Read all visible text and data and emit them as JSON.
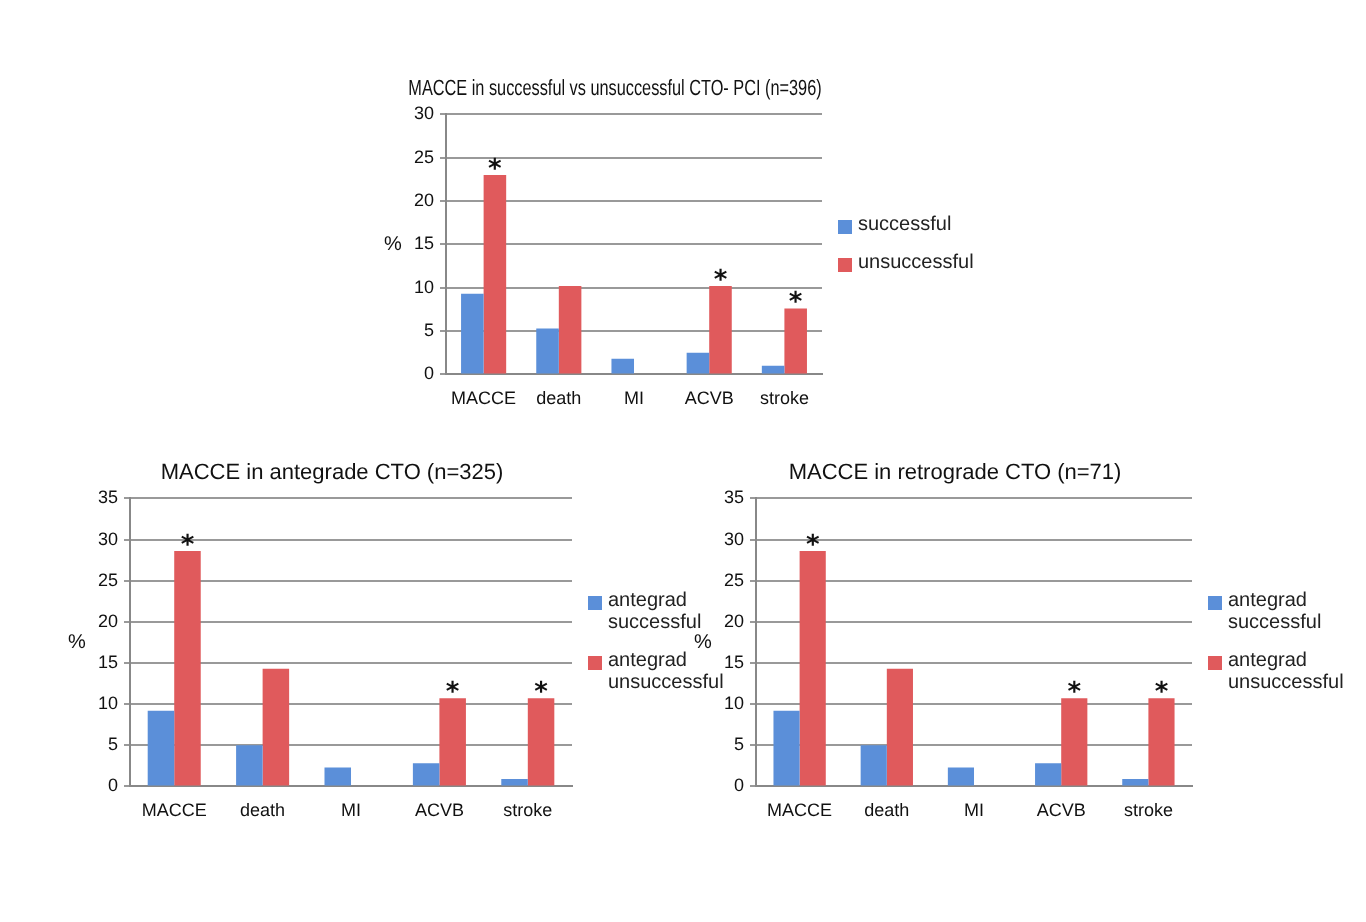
{
  "chart_data": [
    {
      "type": "bar",
      "title": "MACCE in successful vs unsuccessful CTO- PCI (n=396)",
      "ylabel": "%",
      "categories": [
        "MACCE",
        "death",
        "MI",
        "ACVB",
        "stroke"
      ],
      "series": [
        {
          "name": "successful",
          "color": "#5b8fd9",
          "values": [
            9.3,
            5.3,
            1.8,
            2.5,
            1.0
          ]
        },
        {
          "name": "unsuccessful",
          "color": "#e05a5c",
          "values": [
            23,
            10.2,
            0,
            10.2,
            7.6
          ]
        }
      ],
      "ylim": [
        0,
        30
      ],
      "yticks": [
        0,
        5,
        10,
        15,
        20,
        25,
        30
      ],
      "grid": "y",
      "legend": "right",
      "annotations": [
        {
          "text": "*",
          "x": "MACCE",
          "y": 23
        },
        {
          "text": "*",
          "x": "ACVB",
          "y": 10.2
        },
        {
          "text": "*",
          "x": "stroke",
          "y": 7.6
        }
      ]
    },
    {
      "type": "bar",
      "title": "MACCE in antegrade CTO (n=325)",
      "ylabel": "%",
      "categories": [
        "MACCE",
        "death",
        "MI",
        "ACVB",
        "stroke"
      ],
      "series": [
        {
          "name": "antegrad successful",
          "color": "#5b8fd9",
          "values": [
            9.2,
            5,
            2.3,
            2.8,
            0.9
          ]
        },
        {
          "name": "antegrad unsuccessful",
          "color": "#e05a5c",
          "values": [
            28.6,
            14.3,
            0,
            10.7,
            10.7
          ]
        }
      ],
      "ylim": [
        0,
        35
      ],
      "yticks": [
        0,
        5,
        10,
        15,
        20,
        25,
        30,
        35
      ],
      "grid": "y",
      "legend": "right",
      "annotations": [
        {
          "text": "*",
          "x": "MACCE",
          "y": 28.6
        },
        {
          "text": "*",
          "x": "ACVB",
          "y": 10.7
        },
        {
          "text": "*",
          "x": "stroke",
          "y": 10.7
        }
      ]
    },
    {
      "type": "bar",
      "title": "MACCE in retrograde CTO (n=71)",
      "ylabel": "%",
      "categories": [
        "MACCE",
        "death",
        "MI",
        "ACVB",
        "stroke"
      ],
      "series": [
        {
          "name": "antegrad successful",
          "color": "#5b8fd9",
          "values": [
            9.2,
            5,
            2.3,
            2.8,
            0.9
          ]
        },
        {
          "name": "antegrad unsuccessful",
          "color": "#e05a5c",
          "values": [
            28.6,
            14.3,
            0,
            10.7,
            10.7
          ]
        }
      ],
      "ylim": [
        0,
        35
      ],
      "yticks": [
        0,
        5,
        10,
        15,
        20,
        25,
        30,
        35
      ],
      "grid": "y",
      "legend": "right",
      "annotations": [
        {
          "text": "*",
          "x": "MACCE",
          "y": 28.6
        },
        {
          "text": "*",
          "x": "ACVB",
          "y": 10.7
        },
        {
          "text": "*",
          "x": "stroke",
          "y": 10.7
        }
      ]
    }
  ]
}
